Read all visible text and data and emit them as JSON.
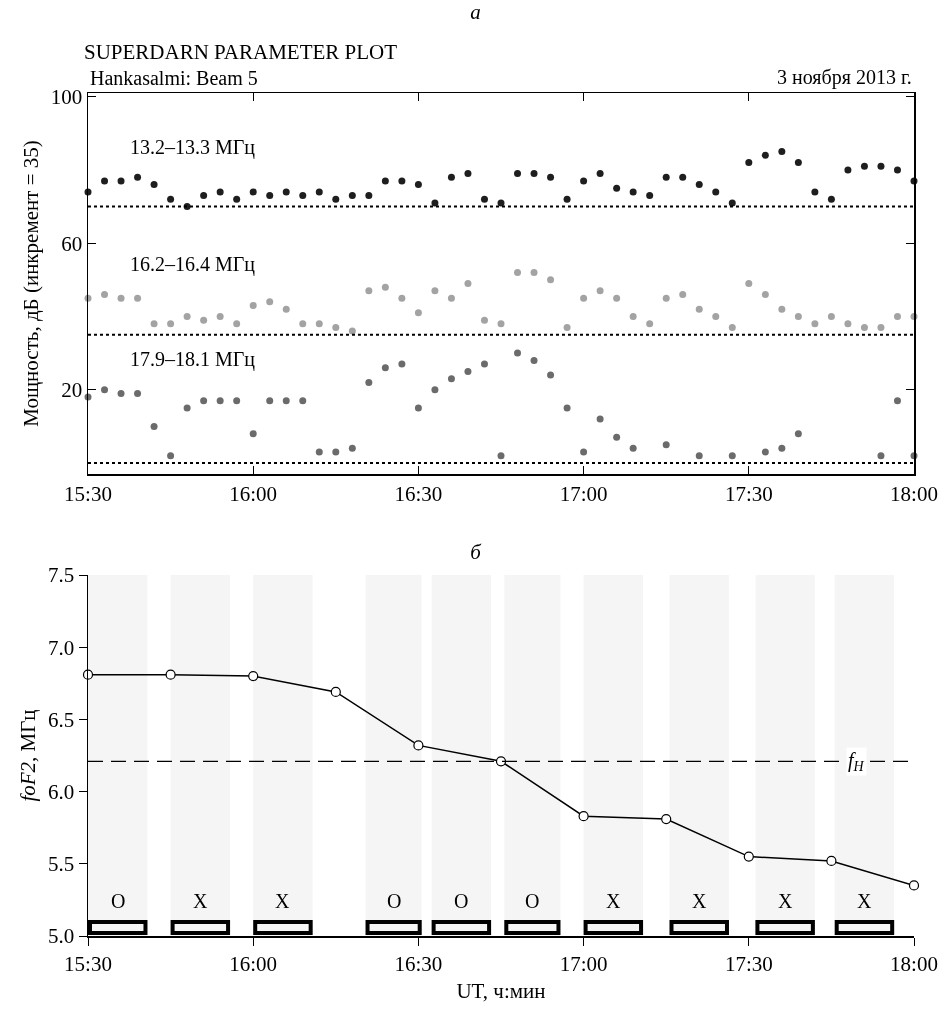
{
  "chart_data": [
    {
      "type": "scatter",
      "title": "а",
      "subtitle": "SUPERDARN PARAMETER PLOT",
      "ylabel": "Мощность, дБ (инкремент = 35)",
      "annotations": [
        "Hankasalmi: Beam 5",
        "3 ноября 2013 г."
      ],
      "x": [
        15.5,
        15.55,
        15.6,
        15.65,
        15.7,
        15.75,
        15.8,
        15.85,
        15.9,
        15.95,
        16,
        16.05,
        16.1,
        16.15,
        16.2,
        16.25,
        16.3,
        16.35,
        16.4,
        16.45,
        16.5,
        16.55,
        16.6,
        16.65,
        16.7,
        16.75,
        16.8,
        16.85,
        16.9,
        16.95,
        17,
        17.05,
        17.1,
        17.15,
        17.2,
        17.25,
        17.3,
        17.35,
        17.4,
        17.45,
        17.5,
        17.55,
        17.6,
        17.65,
        17.7,
        17.75,
        17.8,
        17.85,
        17.9,
        17.95,
        18
      ],
      "series": [
        {
          "name": "13.2–13.3 МГц",
          "color": "#1e1e1e",
          "values": [
            74,
            77,
            77,
            78,
            76,
            72,
            70,
            73,
            74,
            72,
            74,
            73,
            74,
            73,
            74,
            72,
            73,
            73,
            77,
            77,
            76,
            71,
            78,
            79,
            72,
            71,
            79,
            79,
            78,
            72,
            77,
            79,
            75,
            74,
            73,
            78,
            78,
            76,
            74,
            71,
            82,
            84,
            85,
            82,
            74,
            72,
            80,
            81,
            81,
            80,
            77
          ]
        },
        {
          "name": "16.2–16.4 МГц",
          "color": "#a3a3a3",
          "values": [
            45,
            46,
            45,
            45,
            38,
            38,
            40,
            39,
            40,
            38,
            43,
            44,
            42,
            38,
            38,
            37,
            36,
            47,
            48,
            45,
            41,
            47,
            45,
            49,
            39,
            38,
            52,
            52,
            50,
            37,
            45,
            47,
            45,
            40,
            38,
            45,
            46,
            42,
            40,
            37,
            49,
            46,
            42,
            40,
            38,
            40,
            38,
            37,
            37,
            40,
            40
          ]
        },
        {
          "name": "17.9–18.1 МГц",
          "color": "#6b6b6b",
          "values": [
            18,
            20,
            19,
            19,
            10,
            2,
            15,
            17,
            17,
            17,
            8,
            17,
            17,
            17,
            3,
            3,
            4,
            22,
            26,
            27,
            15,
            20,
            23,
            25,
            27,
            2,
            30,
            28,
            24,
            15,
            3,
            12,
            7,
            4,
            null,
            5,
            null,
            2,
            null,
            2,
            null,
            3,
            4,
            8,
            null,
            null,
            null,
            null,
            2,
            17,
            2
          ]
        }
      ],
      "xlim": [
        15.5,
        18
      ],
      "xticks": [
        {
          "value": 15.5,
          "label": "15:30"
        },
        {
          "value": 16,
          "label": "16:00"
        },
        {
          "value": 16.5,
          "label": "16:30"
        },
        {
          "value": 17,
          "label": "17:00"
        },
        {
          "value": 17.5,
          "label": "17:30"
        },
        {
          "value": 18,
          "label": "18:00"
        }
      ],
      "ylim": [
        -3,
        101
      ],
      "yticks": [
        20,
        60,
        100
      ],
      "ref_lines": [
        {
          "axis": "y",
          "value": 70,
          "color": "#000000",
          "line_style": "dotted"
        },
        {
          "axis": "y",
          "value": 35,
          "color": "#000000",
          "line_style": "dotted"
        },
        {
          "axis": "y",
          "value": 0,
          "color": "#000000",
          "line_style": "dotted"
        }
      ],
      "marker": "circle"
    },
    {
      "type": "line",
      "title": "б",
      "xlabel": "UT, ч:мин",
      "ylabel": "foF2, МГц",
      "x": [
        15.5,
        15.75,
        16,
        16.25,
        16.5,
        16.75,
        17,
        17.25,
        17.5,
        17.75,
        18
      ],
      "series": [
        {
          "color": "#000000",
          "values": [
            6.81,
            6.81,
            6.8,
            6.69,
            6.32,
            6.21,
            5.83,
            5.81,
            5.55,
            5.52,
            5.35
          ]
        }
      ],
      "xlim": [
        15.5,
        18
      ],
      "xticks": [
        {
          "value": 15.5,
          "label": "15:30"
        },
        {
          "value": 16,
          "label": "16:00"
        },
        {
          "value": 16.5,
          "label": "16:30"
        },
        {
          "value": 17,
          "label": "17:00"
        },
        {
          "value": 17.5,
          "label": "17:30"
        },
        {
          "value": 18,
          "label": "18:00"
        }
      ],
      "ylim": [
        5,
        7.5
      ],
      "yticks": [
        {
          "value": 5,
          "label": "5.0"
        },
        {
          "value": 5.5,
          "label": "5.5"
        },
        {
          "value": 6,
          "label": "6.0"
        },
        {
          "value": 6.5,
          "label": "6.5"
        },
        {
          "value": 7,
          "label": "7.0"
        },
        {
          "value": 7.5,
          "label": "7.5"
        }
      ],
      "ref_lines": [
        {
          "axis": "y",
          "value": 6.21,
          "label": "f$_{Н}$",
          "color": "#000000",
          "line_style": "dashed"
        }
      ],
      "bands": [
        {
          "axis": "x",
          "from": 15.5,
          "to": 15.68,
          "label": "O",
          "color": "#000000"
        },
        {
          "axis": "x",
          "from": 15.75,
          "to": 15.93,
          "label": "X",
          "color": "#000000"
        },
        {
          "axis": "x",
          "from": 16,
          "to": 16.18,
          "label": "X",
          "color": "#000000"
        },
        {
          "axis": "x",
          "from": 16.34,
          "to": 16.51,
          "label": "O",
          "color": "#000000"
        },
        {
          "axis": "x",
          "from": 16.54,
          "to": 16.72,
          "label": "O",
          "color": "#000000"
        },
        {
          "axis": "x",
          "from": 16.76,
          "to": 16.93,
          "label": "O",
          "color": "#000000"
        },
        {
          "axis": "x",
          "from": 17,
          "to": 17.18,
          "label": "X",
          "color": "#000000"
        },
        {
          "axis": "x",
          "from": 17.26,
          "to": 17.44,
          "label": "X",
          "color": "#000000"
        },
        {
          "axis": "x",
          "from": 17.52,
          "to": 17.7,
          "label": "X",
          "color": "#000000"
        },
        {
          "axis": "x",
          "from": 17.76,
          "to": 17.94,
          "label": "X",
          "color": "#000000"
        }
      ],
      "marker": "circle",
      "line_style": "solid"
    }
  ]
}
